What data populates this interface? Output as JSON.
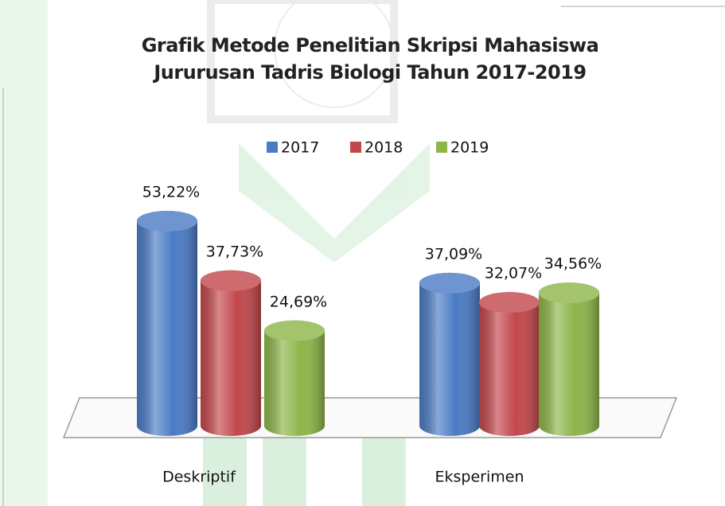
{
  "chart_data": {
    "type": "bar",
    "title": "Grafik Metode Penelitian Skripsi Mahasiswa Jururusan Tadris Biologi Tahun 2017-2019",
    "categories": [
      "Deskriptif",
      "Eksperimen"
    ],
    "series": [
      {
        "name": "2017",
        "color": "#4a7bc4",
        "values": [
          53.22,
          37.09
        ],
        "value_labels": [
          "53,22%",
          "37,09%"
        ]
      },
      {
        "name": "2018",
        "color": "#c2474b",
        "values": [
          37.73,
          32.07
        ],
        "value_labels": [
          "37,73%",
          "32,07%"
        ]
      },
      {
        "name": "2019",
        "color": "#8db548",
        "values": [
          24.69,
          34.56
        ],
        "value_labels": [
          "24,69%",
          "34,56%"
        ]
      }
    ],
    "legend": "top"
  }
}
